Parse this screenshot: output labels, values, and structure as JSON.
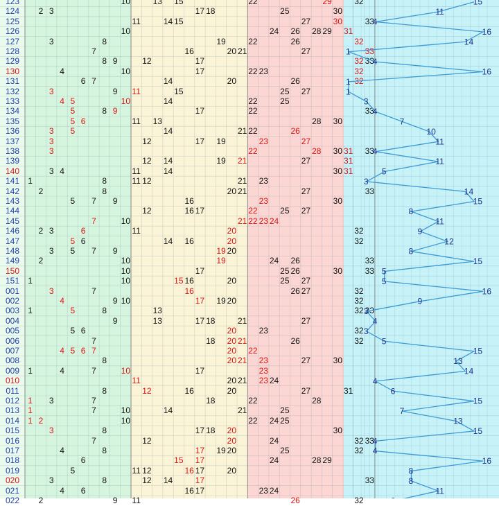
{
  "chart_data": {
    "type": "table",
    "number_range": [
      1,
      33
    ],
    "zone_colors": [
      "#d6f5de",
      "#fbf4d6",
      "#fbd6d2"
    ],
    "trend_color": "#3e9ad6",
    "trend_bg": "#c6f2f8",
    "hot_color": "#d11111",
    "rows": [
      {
        "label": "123",
        "nums": [
          10,
          13,
          15,
          22,
          29,
          32
        ],
        "hot": [
          29
        ],
        "trend": 15
      },
      {
        "label": "124",
        "nums": [
          2,
          3,
          17,
          18,
          25,
          30
        ],
        "hot": [],
        "trend": 11
      },
      {
        "label": "125",
        "nums": [
          11,
          14,
          15,
          27,
          30,
          33
        ],
        "hot": [
          30
        ],
        "trend": 4
      },
      {
        "label": "126",
        "nums": [
          10,
          24,
          26,
          28,
          29,
          31
        ],
        "hot": [
          31
        ],
        "trend": 16
      },
      {
        "label": "127",
        "nums": [
          3,
          8,
          19,
          22,
          26,
          32
        ],
        "hot": [
          32
        ],
        "trend": 14
      },
      {
        "label": "128",
        "nums": [
          7,
          16,
          20,
          21,
          27,
          33
        ],
        "hot": [
          33
        ],
        "trend": 1
      },
      {
        "label": "129",
        "nums": [
          8,
          9,
          12,
          17,
          32,
          33
        ],
        "hot": [
          32
        ],
        "trend": 4
      },
      {
        "label": "130",
        "nums": [
          4,
          10,
          17,
          22,
          23,
          32
        ],
        "hot": [
          32
        ],
        "trend": 16
      },
      {
        "label": "131",
        "nums": [
          6,
          7,
          14,
          20,
          26,
          32
        ],
        "hot": [
          32
        ],
        "trend": 1
      },
      {
        "label": "132",
        "nums": [
          3,
          9,
          11,
          15,
          25,
          27
        ],
        "hot": [
          3,
          11
        ],
        "trend": 1
      },
      {
        "label": "133",
        "nums": [
          4,
          5,
          10,
          14,
          22,
          25
        ],
        "hot": [
          4,
          5,
          10
        ],
        "trend": 3
      },
      {
        "label": "134",
        "nums": [
          5,
          8,
          9,
          17,
          22,
          33
        ],
        "hot": [
          5,
          9
        ],
        "trend": 4
      },
      {
        "label": "135",
        "nums": [
          5,
          6,
          11,
          13,
          28,
          30
        ],
        "hot": [
          5,
          6
        ],
        "trend": 7
      },
      {
        "label": "136",
        "nums": [
          3,
          5,
          14,
          21,
          22,
          26
        ],
        "hot": [
          3,
          5,
          26
        ],
        "trend": 10
      },
      {
        "label": "137",
        "nums": [
          3,
          12,
          17,
          19,
          23,
          27
        ],
        "hot": [
          3,
          23,
          27
        ],
        "trend": 11
      },
      {
        "label": "138",
        "nums": [
          3,
          22,
          28,
          30,
          31,
          33
        ],
        "hot": [
          3,
          22,
          28,
          31
        ],
        "trend": 4
      },
      {
        "label": "139",
        "nums": [
          12,
          14,
          19,
          21,
          27,
          31
        ],
        "hot": [
          21,
          31
        ],
        "trend": 11
      },
      {
        "label": "140",
        "nums": [
          3,
          4,
          11,
          14,
          30,
          31
        ],
        "hot": [
          31
        ],
        "trend": 5
      },
      {
        "label": "141",
        "nums": [
          1,
          8,
          11,
          12,
          21,
          23
        ],
        "hot": [],
        "trend": 3
      },
      {
        "label": "142",
        "nums": [
          2,
          8,
          20,
          21,
          27,
          33
        ],
        "hot": [],
        "trend": 14
      },
      {
        "label": "143",
        "nums": [
          5,
          7,
          9,
          16,
          23,
          30
        ],
        "hot": [
          23
        ],
        "trend": 15
      },
      {
        "label": "144",
        "nums": [
          12,
          16,
          17,
          22,
          25,
          27
        ],
        "hot": [
          22
        ],
        "trend": 8
      },
      {
        "label": "145",
        "nums": [
          7,
          10,
          21,
          22,
          23,
          24
        ],
        "hot": [
          7,
          21,
          22,
          23,
          24
        ],
        "trend": 11
      },
      {
        "label": "146",
        "nums": [
          2,
          3,
          6,
          11,
          20,
          32
        ],
        "hot": [
          6,
          20
        ],
        "trend": 9
      },
      {
        "label": "147",
        "nums": [
          5,
          6,
          14,
          16,
          20,
          32
        ],
        "hot": [
          5,
          20
        ],
        "trend": 12
      },
      {
        "label": "148",
        "nums": [
          3,
          5,
          7,
          9,
          19,
          20
        ],
        "hot": [
          19
        ],
        "trend": 8
      },
      {
        "label": "149",
        "nums": [
          2,
          10,
          19,
          24,
          26,
          33
        ],
        "hot": [
          19
        ],
        "trend": 15
      },
      {
        "label": "150",
        "nums": [
          10,
          17,
          25,
          26,
          30,
          33
        ],
        "hot": [],
        "trend": 5
      },
      {
        "label": "151",
        "nums": [
          1,
          10,
          15,
          16,
          20,
          25,
          27
        ],
        "hot": [
          15
        ],
        "trend": 5
      },
      {
        "label": "001",
        "nums": [
          3,
          7,
          16,
          26,
          27,
          32
        ],
        "hot": [
          3,
          16
        ],
        "trend": 16
      },
      {
        "label": "002",
        "nums": [
          4,
          9,
          10,
          17,
          19,
          20,
          32
        ],
        "hot": [
          4,
          17
        ],
        "trend": 9
      },
      {
        "label": "003",
        "nums": [
          1,
          5,
          8,
          13,
          32,
          33
        ],
        "hot": [
          5
        ],
        "trend": 3
      },
      {
        "label": "004",
        "nums": [
          9,
          13,
          17,
          18,
          21,
          27
        ],
        "hot": [],
        "trend": 4
      },
      {
        "label": "005",
        "nums": [
          5,
          6,
          20,
          23,
          32
        ],
        "hot": [
          20
        ],
        "trend": 3
      },
      {
        "label": "006",
        "nums": [
          7,
          18,
          20,
          21,
          26,
          32
        ],
        "hot": [
          20,
          21
        ],
        "trend": 5
      },
      {
        "label": "007",
        "nums": [
          4,
          5,
          6,
          7,
          20,
          22
        ],
        "hot": [
          4,
          5,
          6,
          7,
          20,
          22
        ],
        "trend": 15
      },
      {
        "label": "008",
        "nums": [
          8,
          20,
          21,
          23,
          27,
          30
        ],
        "hot": [
          20,
          21,
          23
        ],
        "trend": 13
      },
      {
        "label": "009",
        "nums": [
          1,
          4,
          7,
          10,
          17,
          23
        ],
        "hot": [
          10,
          23
        ],
        "trend": 14
      },
      {
        "label": "010",
        "nums": [
          11,
          20,
          21,
          23,
          24
        ],
        "hot": [
          11,
          23
        ],
        "trend": 4
      },
      {
        "label": "011",
        "nums": [
          8,
          12,
          16,
          20,
          27,
          31
        ],
        "hot": [
          12
        ],
        "trend": 6
      },
      {
        "label": "012",
        "nums": [
          1,
          3,
          7,
          18,
          22,
          28
        ],
        "hot": [
          1
        ],
        "trend": 15
      },
      {
        "label": "013",
        "nums": [
          1,
          7,
          10,
          14,
          21,
          25
        ],
        "hot": [
          1
        ],
        "trend": 7
      },
      {
        "label": "014",
        "nums": [
          1,
          2,
          10,
          22,
          24,
          25
        ],
        "hot": [
          1,
          2
        ],
        "trend": 13
      },
      {
        "label": "015",
        "nums": [
          3,
          8,
          17,
          18,
          20,
          30
        ],
        "hot": [
          3,
          20
        ],
        "trend": 15
      },
      {
        "label": "016",
        "nums": [
          7,
          12,
          20,
          24,
          32,
          33
        ],
        "hot": [
          20
        ],
        "trend": 4
      },
      {
        "label": "017",
        "nums": [
          4,
          8,
          17,
          19,
          20,
          25,
          32
        ],
        "hot": [
          17
        ],
        "trend": 4
      },
      {
        "label": "018",
        "nums": [
          6,
          15,
          17,
          24,
          28,
          29
        ],
        "hot": [
          15,
          17
        ],
        "trend": 16
      },
      {
        "label": "019",
        "nums": [
          5,
          11,
          12,
          16,
          17,
          20
        ],
        "hot": [
          16
        ],
        "trend": 8
      },
      {
        "label": "020",
        "nums": [
          3,
          8,
          12,
          14,
          17,
          33
        ],
        "hot": [
          17
        ],
        "trend": 8
      },
      {
        "label": "021",
        "nums": [
          4,
          6,
          16,
          17,
          23,
          24
        ],
        "hot": [],
        "trend": 11
      },
      {
        "label": "022",
        "nums": [
          2,
          9,
          11,
          26,
          32
        ],
        "hot": [
          26
        ],
        "trend": 6
      }
    ],
    "trend_range": [
      1,
      16
    ],
    "title": "",
    "xlabel": "",
    "ylabel": ""
  }
}
